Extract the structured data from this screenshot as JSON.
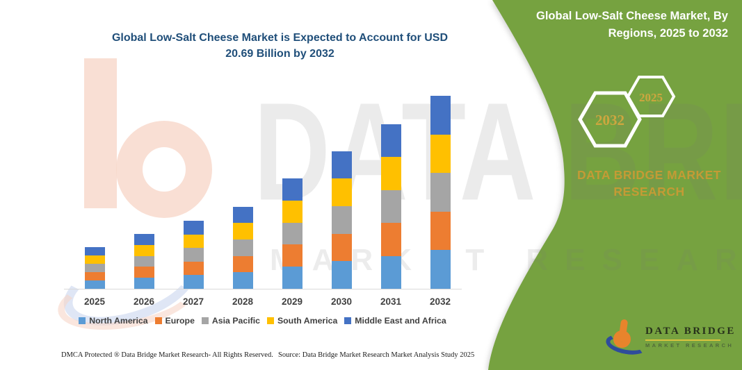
{
  "chart": {
    "title": "Global Low-Salt Cheese Market is Expected to Account for USD 20.69 Billion by 2032"
  },
  "chart_data": {
    "type": "bar",
    "stacked": true,
    "title": "Global Low-Salt Cheese Market is Expected to Account for USD 20.69 Billion by 2032",
    "categories": [
      "2025",
      "2026",
      "2027",
      "2028",
      "2029",
      "2030",
      "2031",
      "2032"
    ],
    "series": [
      {
        "name": "North America",
        "color": "#5B9BD5",
        "values": [
          0.9,
          1.18,
          1.46,
          1.77,
          2.37,
          2.96,
          3.54,
          4.14
        ]
      },
      {
        "name": "Europe",
        "color": "#ED7D31",
        "values": [
          0.9,
          1.18,
          1.46,
          1.77,
          2.37,
          2.96,
          3.54,
          4.14
        ]
      },
      {
        "name": "Asia Pacific",
        "color": "#A5A5A5",
        "values": [
          0.9,
          1.18,
          1.46,
          1.77,
          2.37,
          2.96,
          3.54,
          4.14
        ]
      },
      {
        "name": "South America",
        "color": "#FFC000",
        "values": [
          0.9,
          1.18,
          1.46,
          1.77,
          2.37,
          2.96,
          3.54,
          4.14
        ]
      },
      {
        "name": "Middle East and Africa",
        "color": "#4472C4",
        "values": [
          0.9,
          1.18,
          1.46,
          1.77,
          2.37,
          2.96,
          3.54,
          4.14
        ]
      }
    ],
    "totals_usd_billion": [
      4.5,
      5.89,
      7.31,
      8.87,
      11.85,
      14.8,
      17.71,
      20.69
    ],
    "unit": "USD Billion",
    "legend_position": "bottom",
    "grid": false,
    "y_axis_visible": false
  },
  "panel": {
    "title": "Global Low-Salt Cheese Market, By Regions, 2025 to 2032",
    "hexagon_back_label": "2025",
    "hexagon_front_label": "2032",
    "brand_text": "DATA BRIDGE MARKET RESEARCH",
    "colors": {
      "green": "#76A240",
      "gold": "#C9A53D",
      "white": "#FFFFFF"
    }
  },
  "logo": {
    "name": "DATA BRIDGE",
    "subtitle": "MARKET RESEARCH",
    "colors": {
      "b_orange": "#E8842C",
      "swoosh_blue": "#2F4C9B",
      "rule_gold": "#D9C23F"
    }
  },
  "watermark": {
    "line1": "DATA BRIDGE",
    "line2": "MARKET RESEARCH"
  },
  "footer": {
    "left": "DMCA Protected ® Data Bridge Market Research-  All Rights Reserved.",
    "source": "Source: Data Bridge Market Research  Market Analysis Study 2025"
  }
}
